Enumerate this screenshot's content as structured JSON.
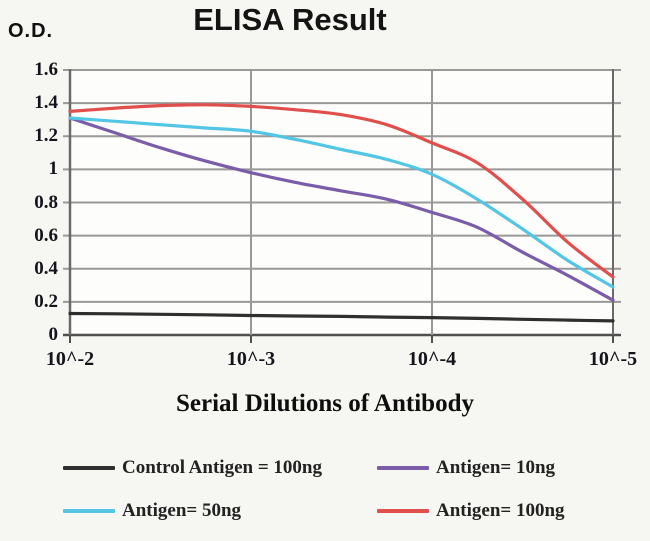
{
  "y_axis_unit": "O.D.",
  "chart_data": {
    "type": "line",
    "title": "ELISA Result",
    "xlabel": "Serial Dilutions of Antibody",
    "ylabel": "O.D.",
    "x_scale": "log10",
    "grid": true,
    "legend_position": "bottom",
    "ylim": [
      0,
      1.6
    ],
    "y_tick_labels": [
      "1.6",
      "1.4",
      "1.2",
      "1",
      "0.8",
      "0.6",
      "0.4",
      "0.2",
      "0"
    ],
    "y_tick_values": [
      1.6,
      1.4,
      1.2,
      1.0,
      0.8,
      0.6,
      0.4,
      0.2,
      0
    ],
    "x_tick_labels": [
      "10^-2",
      "10^-3",
      "10^-4",
      "10^-5"
    ],
    "x_tick_log10": [
      -2,
      -3,
      -4,
      -5
    ],
    "x_samples_log10": [
      -2,
      -2.25,
      -2.5,
      -2.75,
      -3,
      -3.25,
      -3.5,
      -3.75,
      -4,
      -4.25,
      -4.5,
      -4.75,
      -5
    ],
    "series": [
      {
        "name": "Control Antigen = 100ng",
        "color": "#2f2f2f",
        "values": [
          0.13,
          0.128,
          0.125,
          0.122,
          0.118,
          0.115,
          0.112,
          0.108,
          0.105,
          0.1,
          0.095,
          0.09,
          0.085
        ],
        "values_at_ticks": [
          0.13,
          0.12,
          0.105,
          0.085
        ]
      },
      {
        "name": "Antigen= 10ng",
        "color": "#7a5ca9",
        "values": [
          1.31,
          1.22,
          1.13,
          1.05,
          0.98,
          0.92,
          0.87,
          0.82,
          0.74,
          0.65,
          0.5,
          0.36,
          0.21
        ],
        "values_at_ticks": [
          1.31,
          0.98,
          0.74,
          0.21
        ]
      },
      {
        "name": "Antigen= 50ng",
        "color": "#52c6e4",
        "values": [
          1.31,
          1.29,
          1.27,
          1.25,
          1.23,
          1.18,
          1.12,
          1.06,
          0.97,
          0.82,
          0.64,
          0.45,
          0.29
        ],
        "values_at_ticks": [
          1.31,
          1.23,
          0.97,
          0.29
        ]
      },
      {
        "name": "Antigen= 100ng",
        "color": "#e14f4d",
        "values": [
          1.35,
          1.37,
          1.385,
          1.39,
          1.38,
          1.36,
          1.33,
          1.27,
          1.16,
          1.04,
          0.82,
          0.56,
          0.35
        ],
        "values_at_ticks": [
          1.35,
          1.38,
          1.16,
          0.35
        ]
      }
    ]
  },
  "legend": {
    "items": [
      {
        "label": "Control Antigen = 100ng",
        "color": "#2f2f2f"
      },
      {
        "label": "Antigen= 10ng",
        "color": "#7a5ca9"
      },
      {
        "label": "Antigen= 50ng",
        "color": "#52c6e4"
      },
      {
        "label": "Antigen= 100ng",
        "color": "#e14f4d"
      }
    ]
  },
  "style_colors": {
    "gridline": "#999999",
    "axis": "#6a6a6a",
    "bottom_axis": "#4f4f4f",
    "plot_background": "#fdfdfb",
    "page_background": "#f6f6f2"
  }
}
